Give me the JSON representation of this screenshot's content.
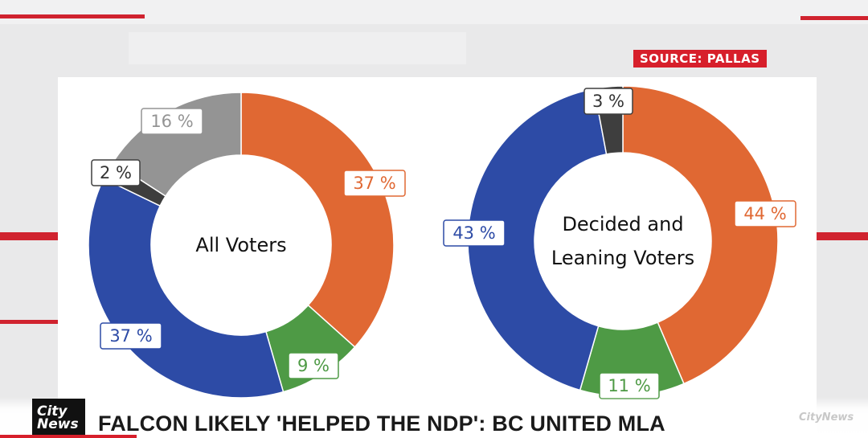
{
  "source_tag": "SOURCE: PALLAS",
  "headline": "FALCON LIKELY 'HELPED THE NDP': BC UNITED MLA",
  "logo": {
    "line1": "City",
    "line2": "News"
  },
  "watermark": "CityNews",
  "chart_data": [
    {
      "type": "pie",
      "center_label": [
        "All Voters"
      ],
      "categories": [
        "Orange",
        "Green",
        "Blue",
        "Dark gray",
        "Gray"
      ],
      "values": [
        37,
        9,
        37,
        2,
        16
      ],
      "labels": [
        "37 %",
        "9 %",
        "37 %",
        "2 %",
        "16 %"
      ],
      "colors": [
        "#e06833",
        "#4e9a45",
        "#2d4ba6",
        "#3e3e3e",
        "#949494"
      ]
    },
    {
      "type": "pie",
      "center_label": [
        "Decided and",
        "Leaning Voters"
      ],
      "categories": [
        "Orange",
        "Green",
        "Blue",
        "Dark gray"
      ],
      "values": [
        44,
        11,
        43,
        3
      ],
      "labels": [
        "44 %",
        "11 %",
        "43 %",
        "3 %"
      ],
      "colors": [
        "#e06833",
        "#4e9a45",
        "#2d4ba6",
        "#3e3e3e"
      ]
    }
  ]
}
